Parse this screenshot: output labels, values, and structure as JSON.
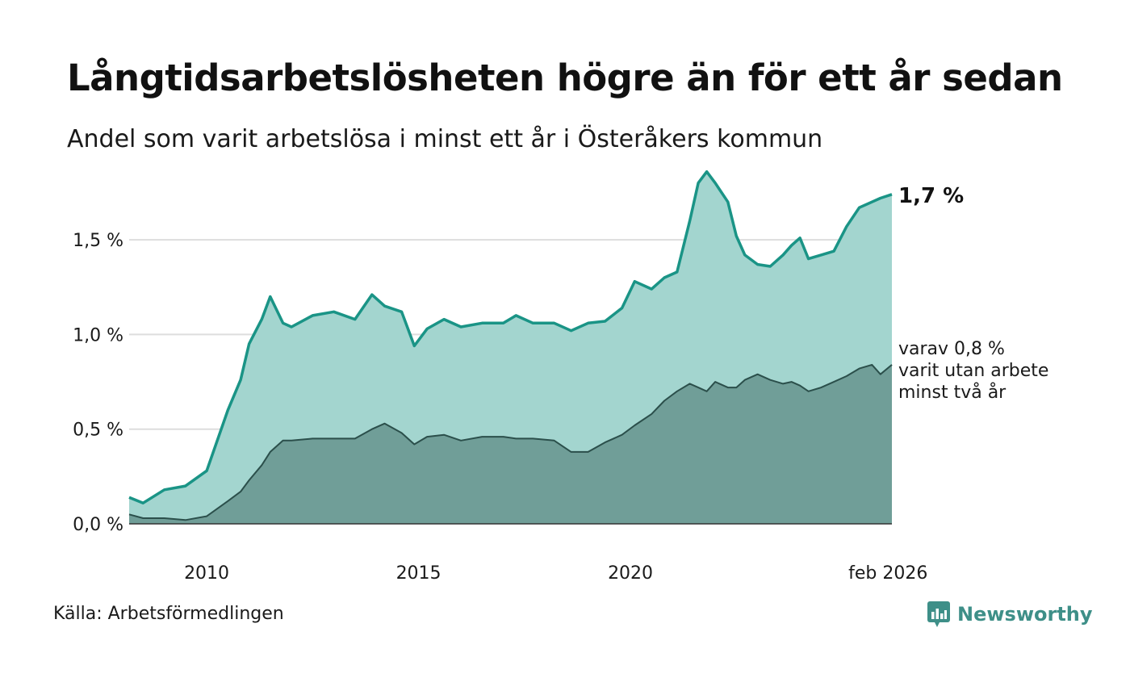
{
  "header": {
    "title": "Långtidsarbetslösheten högre än för ett år sedan",
    "subtitle": "Andel som varit arbetslösa i minst ett år i Österåkers kommun"
  },
  "footer": {
    "source": "Källa: Arbetsförmedlingen",
    "brand": "Newsworthy"
  },
  "colors": {
    "upper_fill": "#a3d5cf",
    "upper_line": "#1a9486",
    "lower_fill": "#709e98",
    "lower_line": "#2b4f4b",
    "grid": "#dddddd",
    "brand": "#3e8f88"
  },
  "chart_data": {
    "type": "area",
    "title": "Långtidsarbetslösheten högre än för ett år sedan",
    "subtitle": "Andel som varit arbetslösa i minst ett år i Österåkers kommun",
    "xlabel": "",
    "ylabel": "",
    "ylim": [
      0,
      1.85
    ],
    "xlim": [
      2008.17,
      2026.17
    ],
    "y_ticks": [
      0,
      0.5,
      1.0,
      1.5
    ],
    "y_tick_labels": [
      "0,0 %",
      "0,5 %",
      "1,0 %",
      "1,5 %"
    ],
    "x_ticks": [
      2010,
      2015,
      2020,
      2026.08
    ],
    "x_tick_labels": [
      "2010",
      "2015",
      "2020",
      "feb 2026"
    ],
    "grid": true,
    "x_points": [
      2008.17,
      2008.5,
      2009,
      2009.5,
      2010,
      2010.5,
      2010.8,
      2011,
      2011.3,
      2011.5,
      2011.8,
      2012,
      2012.5,
      2013,
      2013.5,
      2013.9,
      2014.2,
      2014.6,
      2014.9,
      2015.2,
      2015.6,
      2016,
      2016.5,
      2017,
      2017.3,
      2017.7,
      2018.2,
      2018.6,
      2019,
      2019.4,
      2019.8,
      2020.1,
      2020.5,
      2020.8,
      2021.1,
      2021.4,
      2021.6,
      2021.8,
      2022,
      2022.3,
      2022.5,
      2022.7,
      2023,
      2023.3,
      2023.6,
      2023.8,
      2024,
      2024.2,
      2024.5,
      2024.8,
      2025.1,
      2025.4,
      2025.7,
      2025.9,
      2026.17
    ],
    "series": [
      {
        "name": "Minst ett år",
        "values": [
          0.14,
          0.11,
          0.18,
          0.2,
          0.28,
          0.6,
          0.76,
          0.95,
          1.08,
          1.2,
          1.06,
          1.04,
          1.1,
          1.12,
          1.08,
          1.21,
          1.15,
          1.12,
          0.94,
          1.03,
          1.08,
          1.04,
          1.06,
          1.06,
          1.1,
          1.06,
          1.06,
          1.02,
          1.06,
          1.07,
          1.14,
          1.28,
          1.24,
          1.3,
          1.33,
          1.6,
          1.8,
          1.86,
          1.8,
          1.7,
          1.52,
          1.42,
          1.37,
          1.36,
          1.42,
          1.47,
          1.51,
          1.4,
          1.42,
          1.44,
          1.57,
          1.67,
          1.7,
          1.72,
          1.74
        ],
        "end_label": "1,7 %"
      },
      {
        "name": "Minst två år",
        "values": [
          0.05,
          0.03,
          0.03,
          0.02,
          0.04,
          0.12,
          0.17,
          0.23,
          0.31,
          0.38,
          0.44,
          0.44,
          0.45,
          0.45,
          0.45,
          0.5,
          0.53,
          0.48,
          0.42,
          0.46,
          0.47,
          0.44,
          0.46,
          0.46,
          0.45,
          0.45,
          0.44,
          0.38,
          0.38,
          0.43,
          0.47,
          0.52,
          0.58,
          0.65,
          0.7,
          0.74,
          0.72,
          0.7,
          0.75,
          0.72,
          0.72,
          0.76,
          0.79,
          0.76,
          0.74,
          0.75,
          0.73,
          0.7,
          0.72,
          0.75,
          0.78,
          0.82,
          0.84,
          0.79,
          0.84
        ],
        "end_label": [
          "varav 0,8 %",
          "varit utan arbete",
          "minst två år"
        ]
      }
    ]
  }
}
